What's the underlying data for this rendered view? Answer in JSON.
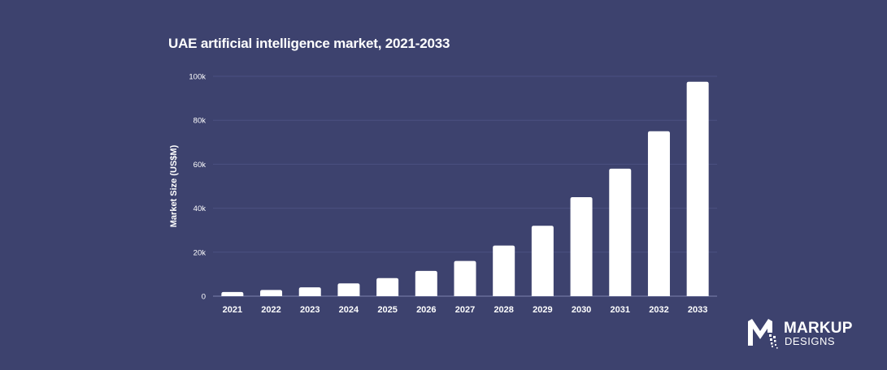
{
  "chart_data": {
    "type": "bar",
    "title": "UAE artificial intelligence market, 2021-2033",
    "xlabel": "",
    "ylabel": "Market Size (US$M)",
    "categories": [
      "2021",
      "2022",
      "2023",
      "2024",
      "2025",
      "2026",
      "2027",
      "2028",
      "2029",
      "2030",
      "2031",
      "2032",
      "2033"
    ],
    "values": [
      1900,
      2800,
      4000,
      5800,
      8200,
      11500,
      16000,
      23000,
      32000,
      45000,
      58000,
      75000,
      97500
    ],
    "ylim": [
      0,
      100000
    ],
    "yticks": [
      {
        "value": 0,
        "label": "0"
      },
      {
        "value": 20000,
        "label": "20k"
      },
      {
        "value": 40000,
        "label": "40k"
      },
      {
        "value": 60000,
        "label": "60k"
      },
      {
        "value": 80000,
        "label": "80k"
      },
      {
        "value": 100000,
        "label": "100k"
      }
    ],
    "grid": true,
    "legend": "none",
    "colors": {
      "background": "#3d426e",
      "bar": "#ffffff",
      "grid": "#4b5081",
      "text": "#ffffff"
    }
  },
  "logo": {
    "word": "MARKUP",
    "sub": "DESIGNS",
    "icon": "markup-m-logo-icon"
  }
}
